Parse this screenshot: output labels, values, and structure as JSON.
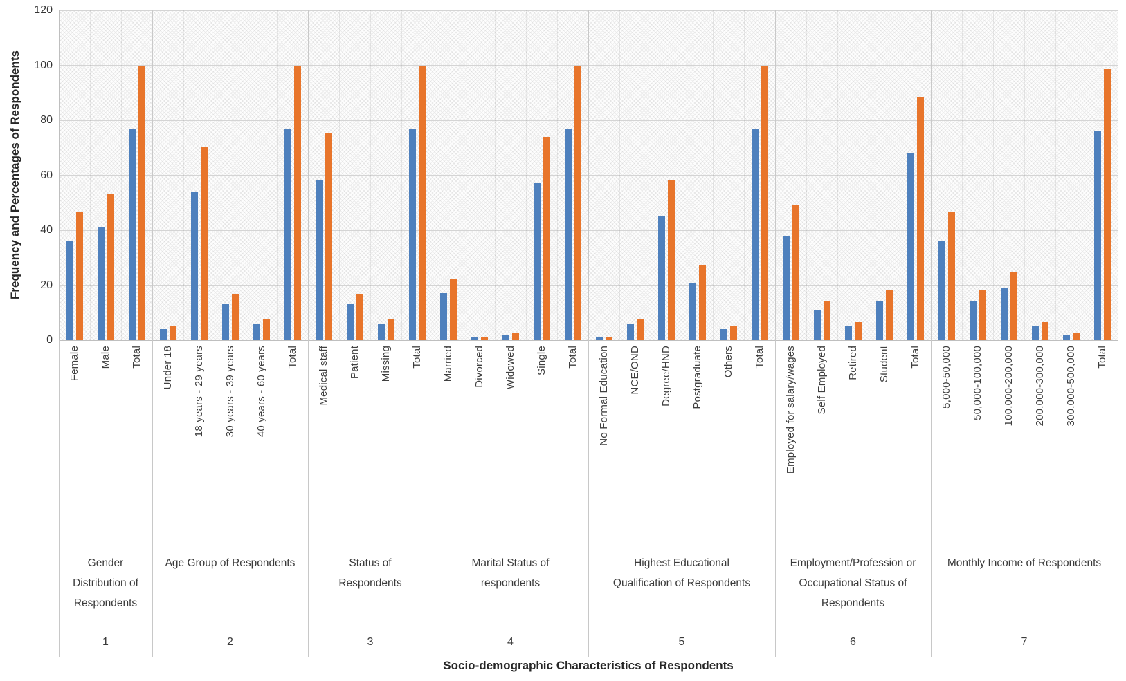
{
  "chart_data": {
    "type": "bar",
    "title": "",
    "xlabel": "Socio-demographic Characteristics of  Respondents",
    "ylabel": "Frequency and  Percentages of Respondents",
    "ylim": [
      0,
      120
    ],
    "ytick_step": 20,
    "yticks": [
      0,
      20,
      40,
      60,
      80,
      100,
      120
    ],
    "grid": true,
    "legend": "none",
    "plot_background": "diagonal-hatch",
    "series_names": [
      "Frequency",
      "Percentage"
    ],
    "series_colors": [
      "#4e80bd",
      "#e8752b"
    ],
    "groups": [
      {
        "number": "1",
        "label": "Gender\nDistribution of\nRespondents",
        "categories": [
          "Female",
          "Male",
          "Total"
        ],
        "frequency": [
          36,
          41,
          77
        ],
        "percentage": [
          46.8,
          53.2,
          100
        ]
      },
      {
        "number": "2",
        "label": "Age Group of Respondents",
        "categories": [
          "Under 18",
          "18 years - 29 years",
          "30 years - 39 years",
          "40 years - 60 years",
          "Total"
        ],
        "frequency": [
          4,
          54,
          13,
          6,
          77
        ],
        "percentage": [
          5.2,
          70.1,
          16.9,
          7.8,
          100
        ]
      },
      {
        "number": "3",
        "label": "Status of\nRespondents",
        "categories": [
          "Medical staff",
          "Patient",
          "Missing",
          "Total"
        ],
        "frequency": [
          58,
          13,
          6,
          77
        ],
        "percentage": [
          75.3,
          16.9,
          7.8,
          100
        ]
      },
      {
        "number": "4",
        "label": "Marital Status of\nrespondents",
        "categories": [
          "Married",
          "Divorced",
          "Widowed",
          "Single",
          "Total"
        ],
        "frequency": [
          17,
          1,
          2,
          57,
          77
        ],
        "percentage": [
          22.1,
          1.3,
          2.6,
          74,
          100
        ]
      },
      {
        "number": "5",
        "label": "Highest Educational\nQualification of Respondents",
        "categories": [
          "No Formal Education",
          "NCE/OND",
          "Degree/HND",
          "Postgraduate",
          "Others",
          "Total"
        ],
        "frequency": [
          1,
          6,
          45,
          21,
          4,
          77
        ],
        "percentage": [
          1.3,
          7.8,
          58.4,
          27.3,
          5.2,
          100
        ]
      },
      {
        "number": "6",
        "label": "Employment/Profession or\nOccupational Status of\nRespondents",
        "categories": [
          "Employed for salary/wages",
          "Self Employed",
          "Retired",
          "Student",
          "Total"
        ],
        "frequency": [
          38,
          11,
          5,
          14,
          68
        ],
        "percentage": [
          49.4,
          14.3,
          6.5,
          18.2,
          88.3
        ]
      },
      {
        "number": "7",
        "label": "Monthly Income of Respondents",
        "categories": [
          "5,000-50,000",
          "50,000-100,000",
          "100,000-200,000",
          "200,000-300,000",
          "300,000-500,000",
          "Total"
        ],
        "frequency": [
          36,
          14,
          19,
          5,
          2,
          76
        ],
        "percentage": [
          46.8,
          18.2,
          24.7,
          6.5,
          2.6,
          98.7
        ]
      }
    ]
  }
}
